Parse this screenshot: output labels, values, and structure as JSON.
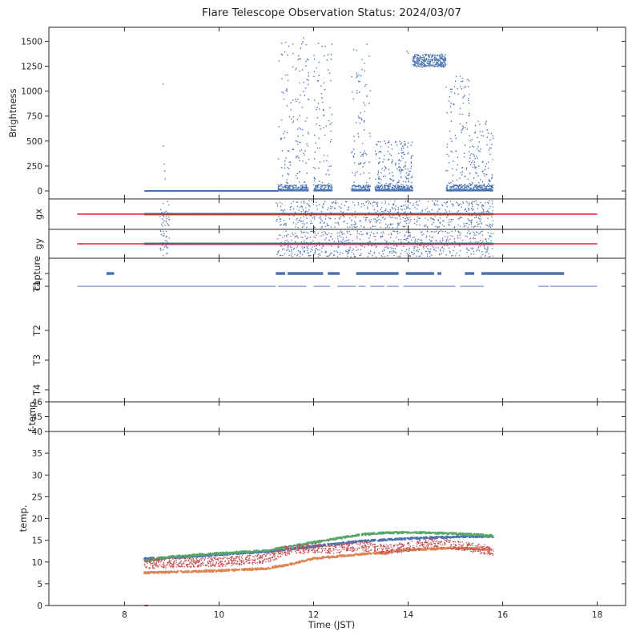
{
  "chart_data": {
    "type": "scatter",
    "title": "Flare Telescope Observation Status: 2024/03/07",
    "xlabel": "Time (JST)",
    "xlim": [
      6.4,
      18.6
    ],
    "xticks": [
      8,
      10,
      12,
      14,
      16,
      18
    ],
    "colors": {
      "blue": "#4c72b0",
      "orange": "#dd8452",
      "green": "#55a868",
      "red": "#c44e52",
      "line_red": "#d62728"
    },
    "panels": [
      {
        "id": "brightness",
        "ylabel": "Brightness",
        "ylim": [
          -80,
          1640
        ],
        "yticks": [
          0,
          250,
          500,
          750,
          1000,
          1250,
          1500
        ],
        "series": [
          {
            "color": "#4c72b0",
            "baseline": {
              "x": [
                8.42,
                11.25
              ],
              "y": 0
            },
            "segments": [
              {
                "x": [
                  11.25,
                  11.9
                ],
                "ylow": 0,
                "yhigh": 1540
              },
              {
                "x": [
                  12.0,
                  12.4
                ],
                "ylow": 0,
                "yhigh": 1520
              },
              {
                "x": [
                  12.8,
                  13.2
                ],
                "ylow": 0,
                "yhigh": 1480
              },
              {
                "x": [
                  13.3,
                  14.1
                ],
                "ylow": 0,
                "yhigh": 500
              },
              {
                "x": [
                  14.1,
                  14.8
                ],
                "ylow": 1240,
                "yhigh": 1370
              },
              {
                "x": [
                  14.8,
                  15.3
                ],
                "ylow": 0,
                "yhigh": 1160
              },
              {
                "x": [
                  15.3,
                  15.8
                ],
                "ylow": 0,
                "yhigh": 700
              }
            ],
            "points": [
              {
                "x": 8.82,
                "y": 1070
              },
              {
                "x": 8.82,
                "y": 450
              },
              {
                "x": 8.84,
                "y": 270
              },
              {
                "x": 8.85,
                "y": 200
              },
              {
                "x": 8.86,
                "y": 120
              },
              {
                "x": 13.98,
                "y": 1400
              },
              {
                "x": 14.0,
                "y": 1380
              },
              {
                "x": 14.2,
                "y": 1360
              },
              {
                "x": 14.5,
                "y": 1340
              },
              {
                "x": 14.7,
                "y": 1280
              },
              {
                "x": 15.1,
                "y": 1150
              },
              {
                "x": 15.15,
                "y": 1130
              }
            ]
          }
        ]
      },
      {
        "id": "gx",
        "ylabel": "gx",
        "ylim": [
          -1,
          1
        ],
        "yticks": [],
        "line": {
          "color": "#d62728",
          "x": [
            7.0,
            18.0
          ],
          "y": 0
        },
        "scatter": {
          "color": "#4c72b0",
          "x": [
            8.42,
            15.8
          ],
          "spread": 0.9
        }
      },
      {
        "id": "gy",
        "ylabel": "gy",
        "ylim": [
          -1,
          1
        ],
        "yticks": [],
        "line": {
          "color": "#d62728",
          "x": [
            7.0,
            18.0
          ],
          "y": 0
        },
        "scatter": {
          "color": "#4c72b0",
          "x": [
            8.42,
            15.8
          ],
          "spread": 0.9
        }
      },
      {
        "id": "status",
        "yticklabels": [
          "capture",
          "T1",
          "T2",
          "T3",
          "T4"
        ],
        "rows": [
          {
            "label": "capture",
            "color": "#4c72b0",
            "segments": [
              [
                7.62,
                7.78
              ],
              [
                11.2,
                11.4
              ],
              [
                11.45,
                12.2
              ],
              [
                12.3,
                12.55
              ],
              [
                12.9,
                13.8
              ],
              [
                13.95,
                14.55
              ],
              [
                14.62,
                14.7
              ],
              [
                15.2,
                15.4
              ],
              [
                15.55,
                17.3
              ]
            ]
          },
          {
            "label": "T1",
            "color": "#4c72b0",
            "segments": [
              [
                7.0,
                11.2
              ],
              [
                11.25,
                11.85
              ],
              [
                12.0,
                12.35
              ],
              [
                12.5,
                12.9
              ],
              [
                12.95,
                13.1
              ],
              [
                13.2,
                13.5
              ],
              [
                13.55,
                13.8
              ],
              [
                13.9,
                15.0
              ],
              [
                15.1,
                15.6
              ],
              [
                16.75,
                16.97
              ],
              [
                17.0,
                18.0
              ]
            ]
          },
          {
            "label": "T2",
            "color": "#4c72b0",
            "segments": []
          },
          {
            "label": "T3",
            "color": "#4c72b0",
            "segments": []
          },
          {
            "label": "T4",
            "color": "#4c72b0",
            "segments": []
          }
        ]
      },
      {
        "id": "ftemp",
        "ylabel": "f-temp",
        "ylim": [
          44,
          46
        ],
        "yticks": [
          45,
          46
        ]
      },
      {
        "id": "temp",
        "ylabel": "temp.",
        "ylim": [
          0,
          40
        ],
        "yticks": [
          0,
          5,
          10,
          15,
          20,
          25,
          30,
          35,
          40
        ],
        "series": [
          {
            "color": "#4c72b0",
            "x": [
              8.42,
              9.0,
              10.0,
              11.0,
              11.5,
              12.0,
              12.5,
              13.0,
              13.5,
              14.0,
              14.5,
              15.0,
              15.5,
              15.8
            ],
            "y": [
              10.8,
              11.0,
              11.7,
              12.4,
              13.0,
              13.6,
              14.2,
              14.8,
              15.1,
              15.4,
              15.6,
              15.8,
              15.9,
              15.8
            ]
          },
          {
            "color": "#dd8452",
            "x": [
              8.42,
              9.0,
              10.0,
              11.0,
              11.5,
              12.0,
              12.5,
              13.0,
              13.5,
              14.0,
              14.5,
              15.0,
              15.5,
              15.8
            ],
            "y": [
              7.5,
              7.7,
              8.0,
              8.5,
              9.5,
              10.8,
              11.3,
              11.8,
              12.2,
              12.8,
              13.0,
              13.2,
              13.0,
              12.8
            ]
          },
          {
            "color": "#55a868",
            "x": [
              8.42,
              9.0,
              10.0,
              11.0,
              11.5,
              12.0,
              12.5,
              13.0,
              13.5,
              14.0,
              14.5,
              15.0,
              15.5,
              15.8
            ],
            "y": [
              10.2,
              11.2,
              12.0,
              12.6,
              13.6,
              14.5,
              15.4,
              16.3,
              16.7,
              16.8,
              16.7,
              16.5,
              16.3,
              16.0
            ]
          },
          {
            "color": "#c44e52",
            "noisy": true,
            "x": [
              8.42,
              9.0,
              10.0,
              11.0,
              11.5,
              12.0,
              12.5,
              13.0,
              13.5,
              14.0,
              14.5,
              15.0,
              15.5,
              15.8
            ],
            "y": [
              9.5,
              9.8,
              10.0,
              10.8,
              12.8,
              13.2,
              13.0,
              13.8,
              12.8,
              13.5,
              14.5,
              14.0,
              13.0,
              12.6
            ]
          }
        ]
      }
    ]
  }
}
